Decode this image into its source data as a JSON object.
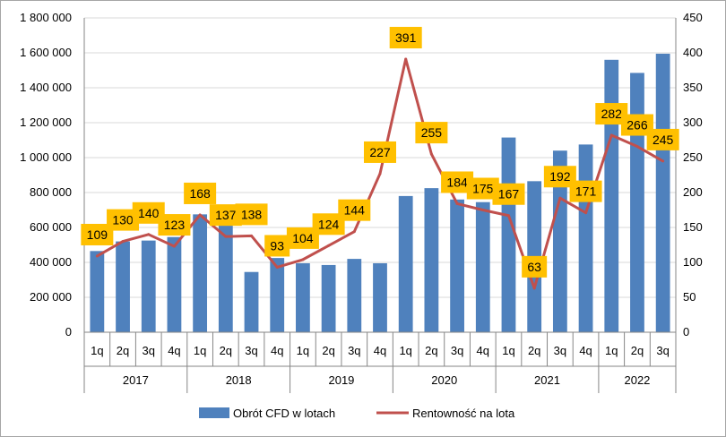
{
  "chart_data": {
    "type": "bar",
    "categories": [
      "1q",
      "2q",
      "3q",
      "4q",
      "1q",
      "2q",
      "3q",
      "4q",
      "1q",
      "2q",
      "3q",
      "4q",
      "1q",
      "2q",
      "3q",
      "4q",
      "1q",
      "2q",
      "3q",
      "4q",
      "1q",
      "2q",
      "3q"
    ],
    "groups": [
      {
        "label": "2017",
        "count": 4
      },
      {
        "label": "2018",
        "count": 4
      },
      {
        "label": "2019",
        "count": 4
      },
      {
        "label": "2020",
        "count": 4
      },
      {
        "label": "2021",
        "count": 4
      },
      {
        "label": "2022",
        "count": 3
      }
    ],
    "series": [
      {
        "name": "Obrót CFD w lotach",
        "type": "bar",
        "axis": "left",
        "color": "#4f81bd",
        "values": [
          465000,
          520000,
          525000,
          545000,
          675000,
          610000,
          345000,
          425000,
          395000,
          385000,
          420000,
          395000,
          780000,
          825000,
          760000,
          745000,
          1115000,
          865000,
          1040000,
          1075000,
          1560000,
          1485000,
          1595000
        ]
      },
      {
        "name": "Rentowność na lota",
        "type": "line",
        "axis": "right",
        "color": "#c0504d",
        "values": [
          109,
          130,
          140,
          123,
          168,
          137,
          138,
          93,
          104,
          124,
          144,
          227,
          391,
          255,
          184,
          175,
          167,
          63,
          192,
          171,
          282,
          266,
          245
        ],
        "labels": [
          "109",
          "130",
          "140",
          "123",
          "168",
          "137",
          "138",
          "93",
          "104",
          "124",
          "144",
          "227",
          "391",
          "255",
          "184",
          "175",
          "167",
          "63",
          "192",
          "171",
          "282",
          "266",
          "245"
        ]
      }
    ],
    "y_left": {
      "range": [
        0,
        1800000
      ],
      "ticks": [
        0,
        200000,
        400000,
        600000,
        800000,
        1000000,
        1200000,
        1400000,
        1600000,
        1800000
      ],
      "tick_labels": [
        "0",
        "200 000",
        "400 000",
        "600 000",
        "800 000",
        "1 000 000",
        "1 200 000",
        "1 400 000",
        "1 600 000",
        "1 800 000"
      ]
    },
    "y_right": {
      "range": [
        0,
        450
      ],
      "ticks": [
        0,
        50,
        100,
        150,
        200,
        250,
        300,
        350,
        400,
        450
      ],
      "tick_labels": [
        "0",
        "50",
        "100",
        "150",
        "200",
        "250",
        "300",
        "350",
        "400",
        "450"
      ]
    },
    "grid": "horizontal",
    "legend": "bottom",
    "data_label_style": {
      "background": "#ffc000"
    }
  }
}
